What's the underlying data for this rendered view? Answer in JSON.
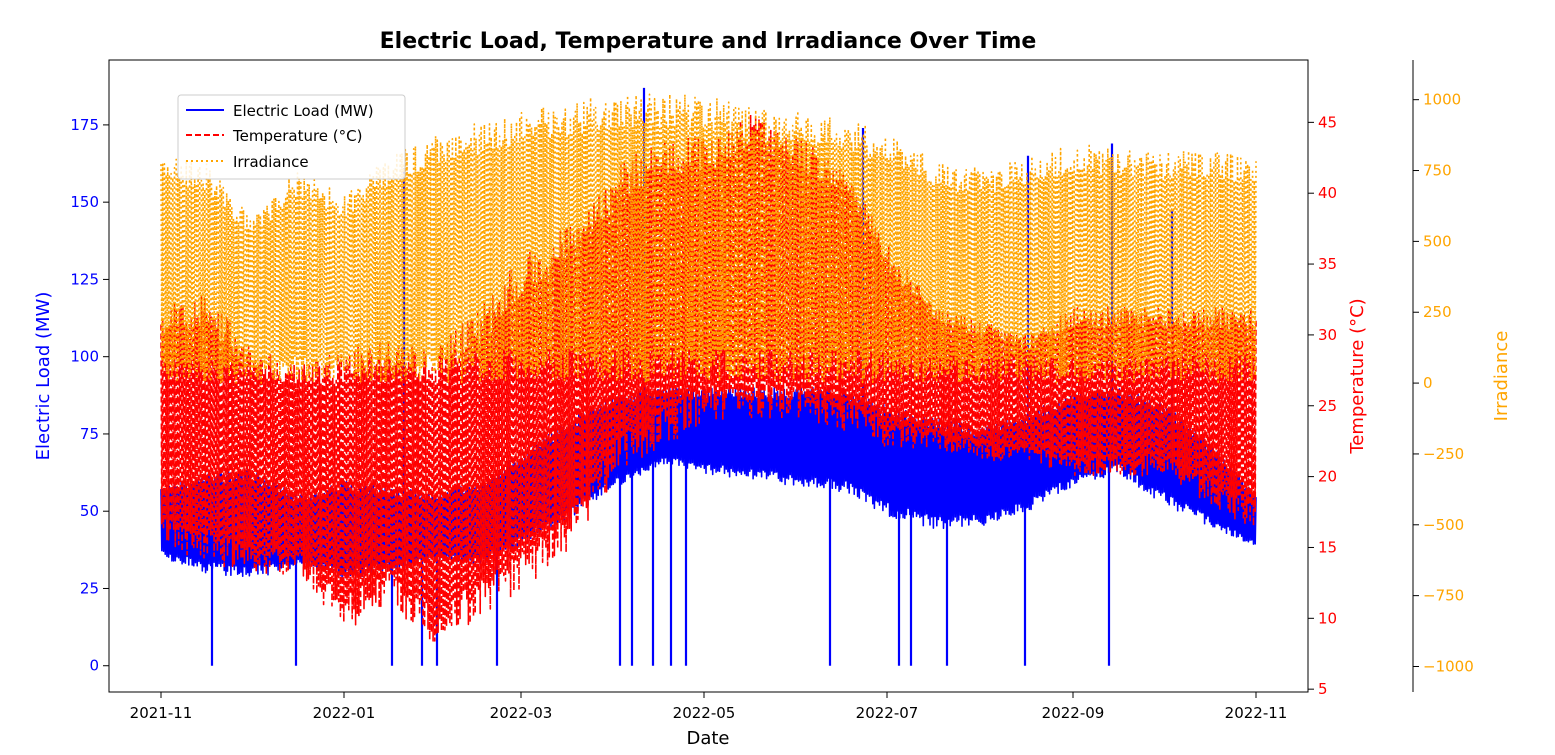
{
  "chart_data": {
    "type": "line",
    "title": "Electric Load, Temperature and Irradiance Over Time",
    "xlabel": "Date",
    "x_ticks": [
      "2021-11",
      "2022-01",
      "2022-03",
      "2022-05",
      "2022-07",
      "2022-09",
      "2022-11"
    ],
    "x_range": [
      "2021-11-01",
      "2022-11-01"
    ],
    "axes": {
      "left": {
        "label": "Electric Load (MW)",
        "color": "#0000ff",
        "ylim": [
          -8.5,
          196
        ],
        "ticks": [
          "0",
          "25",
          "50",
          "75",
          "100",
          "125",
          "150",
          "175"
        ],
        "tick_values": [
          0,
          25,
          50,
          75,
          100,
          125,
          150,
          175
        ]
      },
      "right": {
        "label": "Temperature (°C)",
        "color": "#ff0000",
        "ylim": [
          4.8,
          49.4
        ],
        "ticks": [
          "5",
          "10",
          "15",
          "20",
          "25",
          "30",
          "35",
          "40",
          "45"
        ],
        "tick_values": [
          5,
          10,
          15,
          20,
          25,
          30,
          35,
          40,
          45
        ]
      },
      "far_right": {
        "label": "Irradiance",
        "color": "#ffa500",
        "ylim": [
          -1090,
          1140
        ],
        "ticks": [
          "−1000",
          "−750",
          "−500",
          "−250",
          "0",
          "250",
          "500",
          "750",
          "1000"
        ],
        "tick_values": [
          -1000,
          -750,
          -500,
          -250,
          0,
          250,
          500,
          750,
          1000
        ]
      }
    },
    "legend": {
      "placement": "upper-left",
      "entries": [
        "Electric Load (MW)",
        "Temperature (°C)",
        "Irradiance"
      ]
    },
    "series": [
      {
        "name": "Electric Load (MW)",
        "axis": "left",
        "color": "#0000ff",
        "style": "solid",
        "x_month": [
          0,
          0.5,
          1,
          1.5,
          2,
          2.5,
          3,
          3.5,
          4,
          4.5,
          5,
          5.5,
          6,
          6.5,
          7,
          7.5,
          8,
          8.5,
          9,
          9.5,
          10,
          10.5,
          11,
          11.5,
          12
        ],
        "low": [
          35,
          30,
          28,
          32,
          28,
          30,
          34,
          32,
          40,
          48,
          58,
          65,
          62,
          60,
          58,
          56,
          48,
          44,
          45,
          50,
          58,
          62,
          52,
          45,
          38
        ],
        "high": [
          58,
          62,
          64,
          55,
          60,
          58,
          56,
          60,
          70,
          80,
          88,
          90,
          90,
          90,
          90,
          90,
          84,
          80,
          78,
          82,
          88,
          90,
          85,
          72,
          55
        ],
        "spikes": [
          {
            "date": "2021-11-18",
            "value": 0
          },
          {
            "date": "2021-12-16",
            "value": 0
          },
          {
            "date": "2022-01-17",
            "value": 0
          },
          {
            "date": "2022-01-21",
            "value": 161
          },
          {
            "date": "2022-01-27",
            "value": 0
          },
          {
            "date": "2022-02-01",
            "value": 0
          },
          {
            "date": "2022-02-21",
            "value": 0
          },
          {
            "date": "2022-04-03",
            "value": 0
          },
          {
            "date": "2022-04-07",
            "value": 0
          },
          {
            "date": "2022-04-11",
            "value": 187
          },
          {
            "date": "2022-04-14",
            "value": 0
          },
          {
            "date": "2022-04-20",
            "value": 0
          },
          {
            "date": "2022-04-25",
            "value": 0
          },
          {
            "date": "2022-06-12",
            "value": 0
          },
          {
            "date": "2022-06-23",
            "value": 174
          },
          {
            "date": "2022-07-05",
            "value": 0
          },
          {
            "date": "2022-07-09",
            "value": 0
          },
          {
            "date": "2022-07-21",
            "value": 0
          },
          {
            "date": "2022-08-16",
            "value": 0
          },
          {
            "date": "2022-08-17",
            "value": 165
          },
          {
            "date": "2022-09-13",
            "value": 0
          },
          {
            "date": "2022-09-14",
            "value": 169
          },
          {
            "date": "2022-10-04",
            "value": 147
          }
        ]
      },
      {
        "name": "Temperature (°C)",
        "axis": "right",
        "color": "#ff0000",
        "style": "dashed",
        "x_month": [
          0,
          0.5,
          1,
          1.5,
          2,
          2.5,
          3,
          3.5,
          4,
          4.5,
          5,
          5.5,
          6,
          6.5,
          7,
          7.5,
          8,
          8.5,
          9,
          9.5,
          10,
          10.5,
          11,
          11.5,
          12
        ],
        "low": [
          15,
          14,
          13,
          13,
          9,
          11,
          8,
          10,
          12,
          15,
          20,
          22,
          24,
          24,
          24,
          23,
          22,
          22,
          21,
          21,
          20,
          20,
          20,
          18,
          16
        ],
        "high": [
          32,
          33,
          29,
          28,
          29,
          30,
          29,
          32,
          36,
          38,
          42,
          44,
          44,
          46,
          44,
          42,
          36,
          32,
          31,
          30,
          32,
          32,
          32,
          32,
          32
        ]
      },
      {
        "name": "Irradiance",
        "axis": "far_right",
        "color": "#ffa500",
        "style": "dotted",
        "x_month": [
          0,
          0.5,
          1,
          1.5,
          2,
          2.5,
          3,
          3.5,
          4,
          4.5,
          5,
          5.5,
          6,
          6.5,
          7,
          7.5,
          8,
          8.5,
          9,
          9.5,
          10,
          10.5,
          11,
          11.5,
          12
        ],
        "low": [
          0,
          0,
          0,
          0,
          0,
          0,
          0,
          0,
          0,
          0,
          0,
          0,
          0,
          0,
          0,
          0,
          0,
          0,
          0,
          0,
          0,
          0,
          0,
          0,
          0
        ],
        "high": [
          800,
          780,
          580,
          760,
          660,
          800,
          880,
          920,
          960,
          1000,
          1020,
          1020,
          1020,
          980,
          960,
          940,
          880,
          780,
          760,
          800,
          840,
          840,
          820,
          820,
          800
        ]
      }
    ]
  }
}
